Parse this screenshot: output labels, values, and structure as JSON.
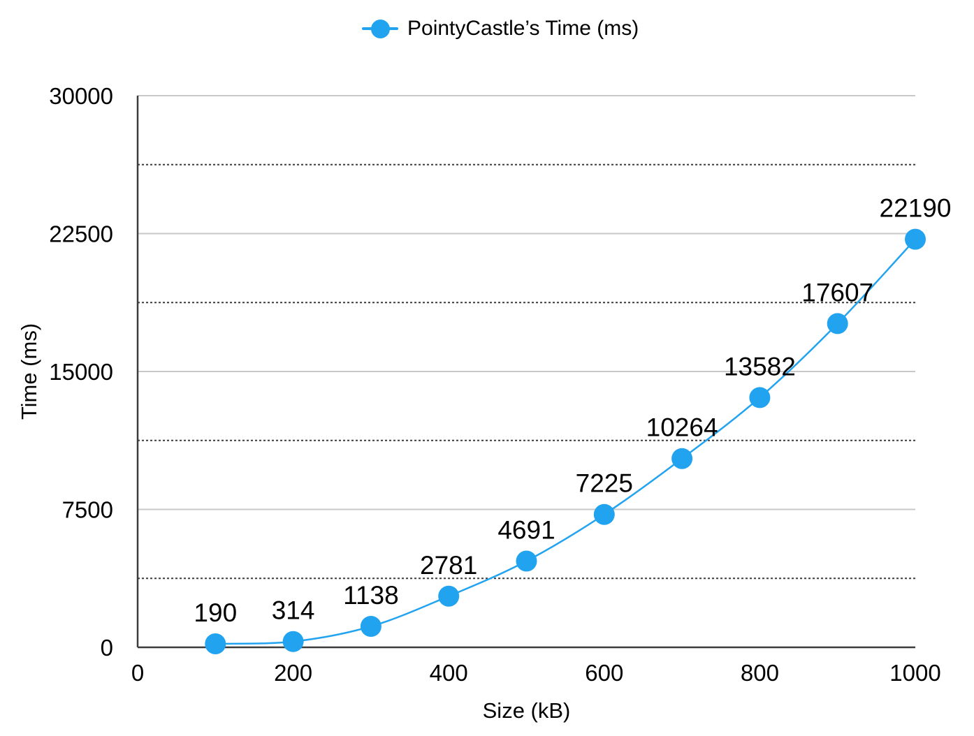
{
  "chart_data": {
    "type": "line",
    "title": "",
    "xlabel": "Size (kB)",
    "ylabel": "Time (ms)",
    "xlim": [
      0,
      1000
    ],
    "ylim": [
      0,
      30000
    ],
    "x_ticks": [
      0,
      200,
      400,
      600,
      800,
      1000
    ],
    "y_ticks": [
      0,
      7500,
      15000,
      22500,
      30000
    ],
    "y_minor_gridlines": [
      3750,
      11250,
      18750,
      26250
    ],
    "grid": {
      "major": "solid-gray",
      "minor": "dotted-dark"
    },
    "legend_position": "top-center",
    "series": [
      {
        "name": "PointyCastle’s Time (ms)",
        "marker": "circle",
        "x": [
          100,
          200,
          300,
          400,
          500,
          600,
          700,
          800,
          900,
          1000
        ],
        "values": [
          190,
          314,
          1138,
          2781,
          4691,
          7225,
          10264,
          13582,
          17607,
          22190
        ],
        "point_labels": [
          "190",
          "314",
          "1138",
          "2781",
          "4691",
          "7225",
          "10264",
          "13582",
          "17607",
          "22190"
        ]
      }
    ],
    "colors": {
      "series": "#22A3F0",
      "grid_major": "#C8C8C8",
      "grid_minor": "#3B3B3B",
      "axis": "#3C3C3C",
      "text": "#000000",
      "background": "#FFFFFF"
    }
  }
}
